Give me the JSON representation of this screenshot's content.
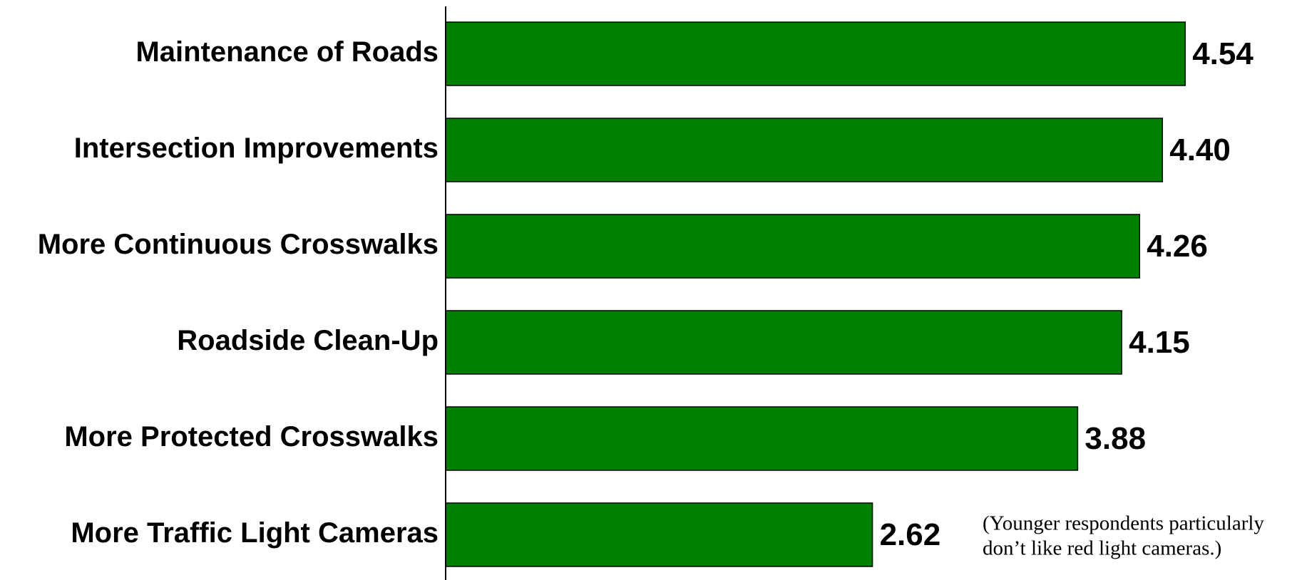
{
  "chart_data": {
    "type": "bar",
    "orientation": "horizontal",
    "categories": [
      "Maintenance of Roads",
      "Intersection Improvements",
      "More Continuous Crosswalks",
      "Roadside Clean-Up",
      "More Protected Crosswalks",
      "More Traffic Light Cameras"
    ],
    "values": [
      4.54,
      4.4,
      4.26,
      4.15,
      3.88,
      2.62
    ],
    "value_labels": [
      "4.54",
      "4.40",
      "4.26",
      "4.15",
      "3.88",
      "2.62"
    ],
    "color": "#008000",
    "xlim": [
      0,
      5.2
    ],
    "annotation": [
      "(Younger respondents particularly",
      "don’t like red light cameras.)"
    ]
  }
}
